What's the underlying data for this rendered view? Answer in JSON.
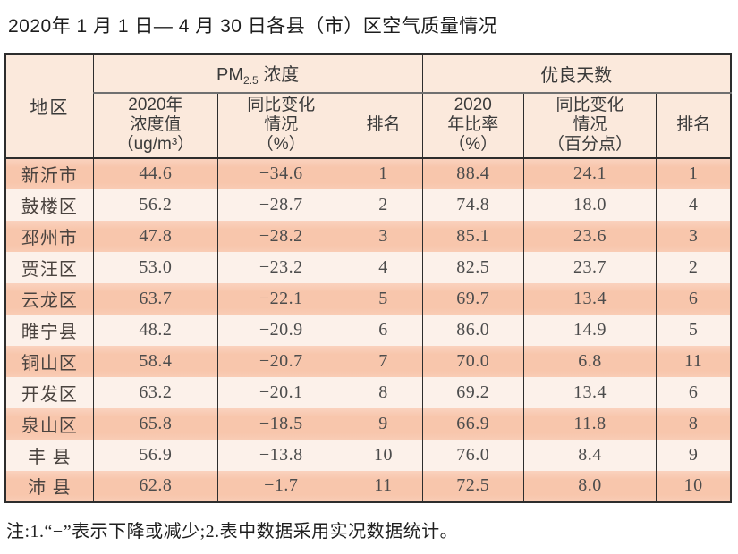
{
  "page": {
    "title": "2020年 1 月 1 日— 4 月 30 日各县（市）区空气质量情况",
    "note": "注:1.“−”表示下降或减少;2.表中数据采用实况数据统计。"
  },
  "colors": {
    "row_odd": "#f8c6ac",
    "row_even": "#fcf1ea",
    "header_bg": "#fbe9dc",
    "border": "#2d2d2d"
  },
  "table": {
    "region_header": "地区",
    "group1": {
      "prefix": "PM",
      "sub": "2.5",
      "suffix": " 浓度"
    },
    "group2": "优良天数",
    "subheaders": [
      "2020年\n浓度值\n（ug/m³）",
      "同比变化\n情况\n（%）",
      "排名",
      "2020\n年比率\n（%）",
      "同比变化\n情况\n（百分点）",
      "排名"
    ],
    "rows": [
      {
        "region": "新沂市",
        "pm_value": "44.6",
        "pm_change": "−34.6",
        "pm_rank": "1",
        "rate_value": "88.4",
        "rate_change": "24.1",
        "rate_rank": "1"
      },
      {
        "region": "鼓楼区",
        "pm_value": "56.2",
        "pm_change": "−28.7",
        "pm_rank": "2",
        "rate_value": "74.8",
        "rate_change": "18.0",
        "rate_rank": "4"
      },
      {
        "region": "邳州市",
        "pm_value": "47.8",
        "pm_change": "−28.2",
        "pm_rank": "3",
        "rate_value": "85.1",
        "rate_change": "23.6",
        "rate_rank": "3"
      },
      {
        "region": "贾汪区",
        "pm_value": "53.0",
        "pm_change": "−23.2",
        "pm_rank": "4",
        "rate_value": "82.5",
        "rate_change": "23.7",
        "rate_rank": "2"
      },
      {
        "region": "云龙区",
        "pm_value": "63.7",
        "pm_change": "−22.1",
        "pm_rank": "5",
        "rate_value": "69.7",
        "rate_change": "13.4",
        "rate_rank": "6"
      },
      {
        "region": "睢宁县",
        "pm_value": "48.2",
        "pm_change": "−20.9",
        "pm_rank": "6",
        "rate_value": "86.0",
        "rate_change": "14.9",
        "rate_rank": "5"
      },
      {
        "region": "铜山区",
        "pm_value": "58.4",
        "pm_change": "−20.7",
        "pm_rank": "7",
        "rate_value": "70.0",
        "rate_change": "6.8",
        "rate_rank": "11"
      },
      {
        "region": "开发区",
        "pm_value": "63.2",
        "pm_change": "−20.1",
        "pm_rank": "8",
        "rate_value": "69.2",
        "rate_change": "13.4",
        "rate_rank": "6"
      },
      {
        "region": "泉山区",
        "pm_value": "65.8",
        "pm_change": "−18.5",
        "pm_rank": "9",
        "rate_value": "66.9",
        "rate_change": "11.8",
        "rate_rank": "8"
      },
      {
        "region": "丰 县",
        "pm_value": "56.9",
        "pm_change": "−13.8",
        "pm_rank": "10",
        "rate_value": "76.0",
        "rate_change": "8.4",
        "rate_rank": "9"
      },
      {
        "region": "沛 县",
        "pm_value": "62.8",
        "pm_change": "−1.7",
        "pm_rank": "11",
        "rate_value": "72.5",
        "rate_change": "8.0",
        "rate_rank": "10"
      }
    ]
  }
}
